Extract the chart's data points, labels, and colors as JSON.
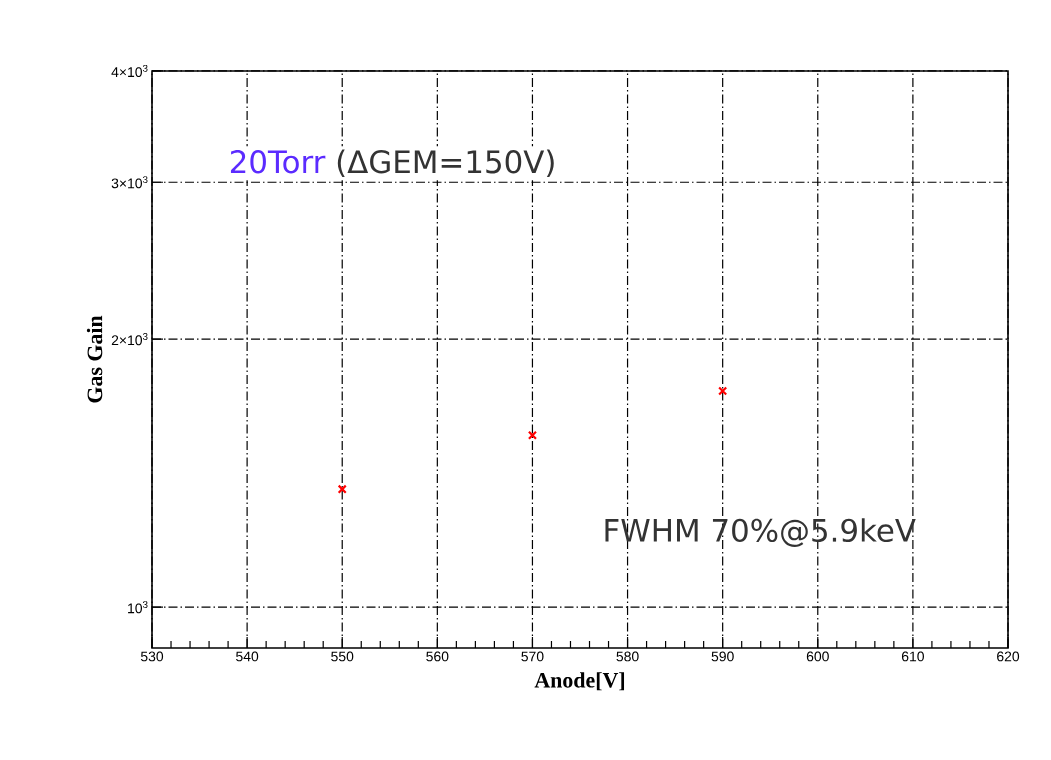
{
  "chart_data": {
    "type": "scatter",
    "xlabel": "Anode[V]",
    "ylabel": "Gas Gain",
    "x": [
      550,
      570,
      590
    ],
    "series": [
      {
        "color": "#ff0000",
        "values": [
          1357,
          1560,
          1749
        ]
      }
    ],
    "marker": "cross",
    "log": "y",
    "grid": true,
    "xlim": [
      530,
      620
    ],
    "xticks": [
      530,
      540,
      550,
      560,
      570,
      580,
      590,
      600,
      610,
      620
    ],
    "ylim": [
      900,
      4000
    ],
    "yticks": [
      {
        "value": 1000,
        "label": "10$^{3}$"
      },
      {
        "value": 2000,
        "label": "2×10$^{3}$"
      },
      {
        "value": 3000,
        "label": "3×10$^{3}$"
      },
      {
        "value": 4000,
        "label": "4×10$^{3}$"
      }
    ],
    "annotations": [
      "20Torr",
      "(ΔGEM=150V)",
      "FWHM 70%@5.9keV"
    ]
  }
}
